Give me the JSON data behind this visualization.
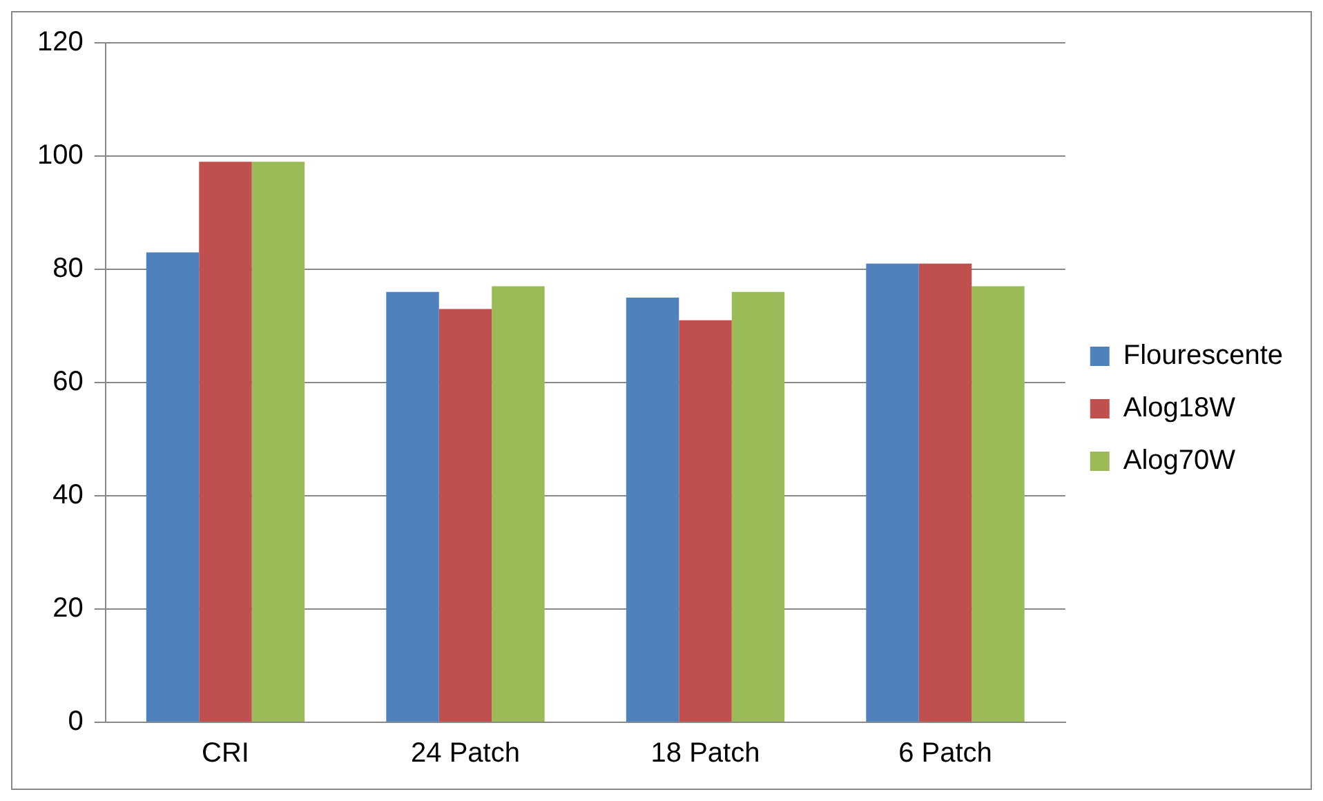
{
  "chart_data": {
    "type": "bar",
    "categories": [
      "CRI",
      "24 Patch",
      "18 Patch",
      "6 Patch"
    ],
    "series": [
      {
        "name": "Flourescente",
        "color": "#4f81bd",
        "values": [
          83,
          76,
          75,
          81
        ]
      },
      {
        "name": "Alog18W",
        "color": "#c0504d",
        "values": [
          99,
          73,
          71,
          81
        ]
      },
      {
        "name": "Alog70W",
        "color": "#9bbb59",
        "values": [
          99,
          77,
          76,
          77
        ]
      }
    ],
    "ylim": [
      0,
      120
    ],
    "yticks": [
      0,
      20,
      40,
      60,
      80,
      100,
      120
    ],
    "grid": "y",
    "legend": "right"
  }
}
